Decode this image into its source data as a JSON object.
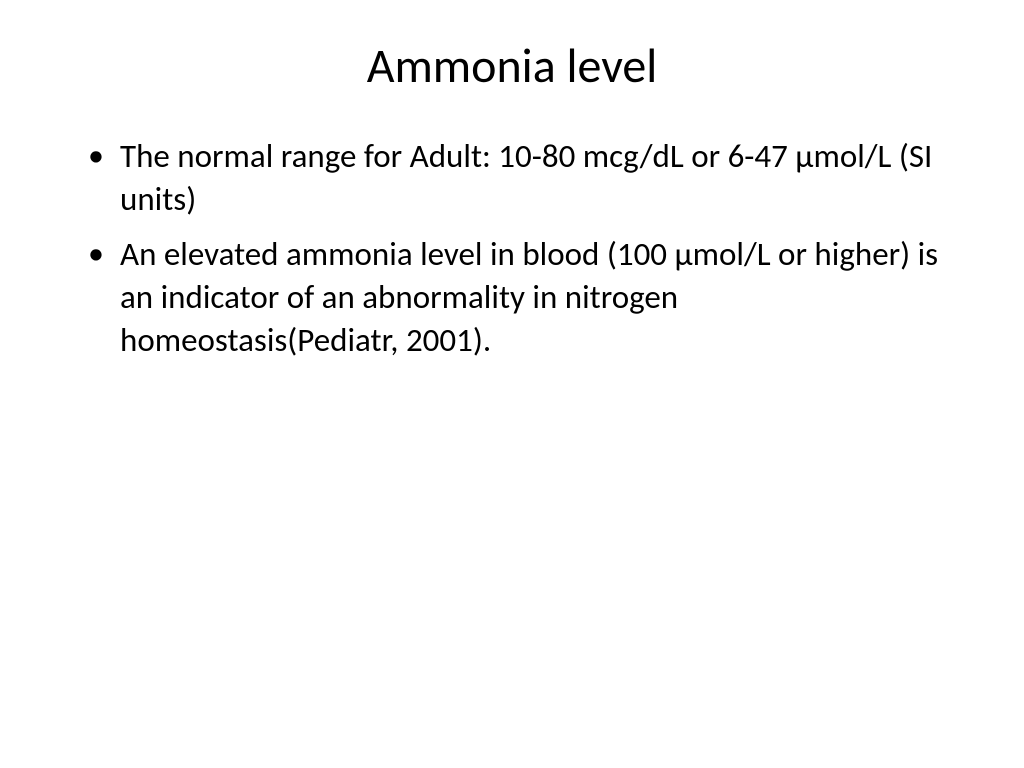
{
  "slide": {
    "title": "Ammonia level",
    "bullets": [
      "The normal range for Adult: 10-80 mcg/dL or 6-47 μmol/L (SI units)",
      "An elevated ammonia level in blood (100 μmol/L or higher) is an indicator of an abnormality in nitrogen homeostasis(Pediatr, 2001)."
    ]
  },
  "style": {
    "background_color": "#ffffff",
    "text_color": "#000000",
    "title_fontsize": 48,
    "body_fontsize": 33,
    "font_family": "Calibri"
  }
}
